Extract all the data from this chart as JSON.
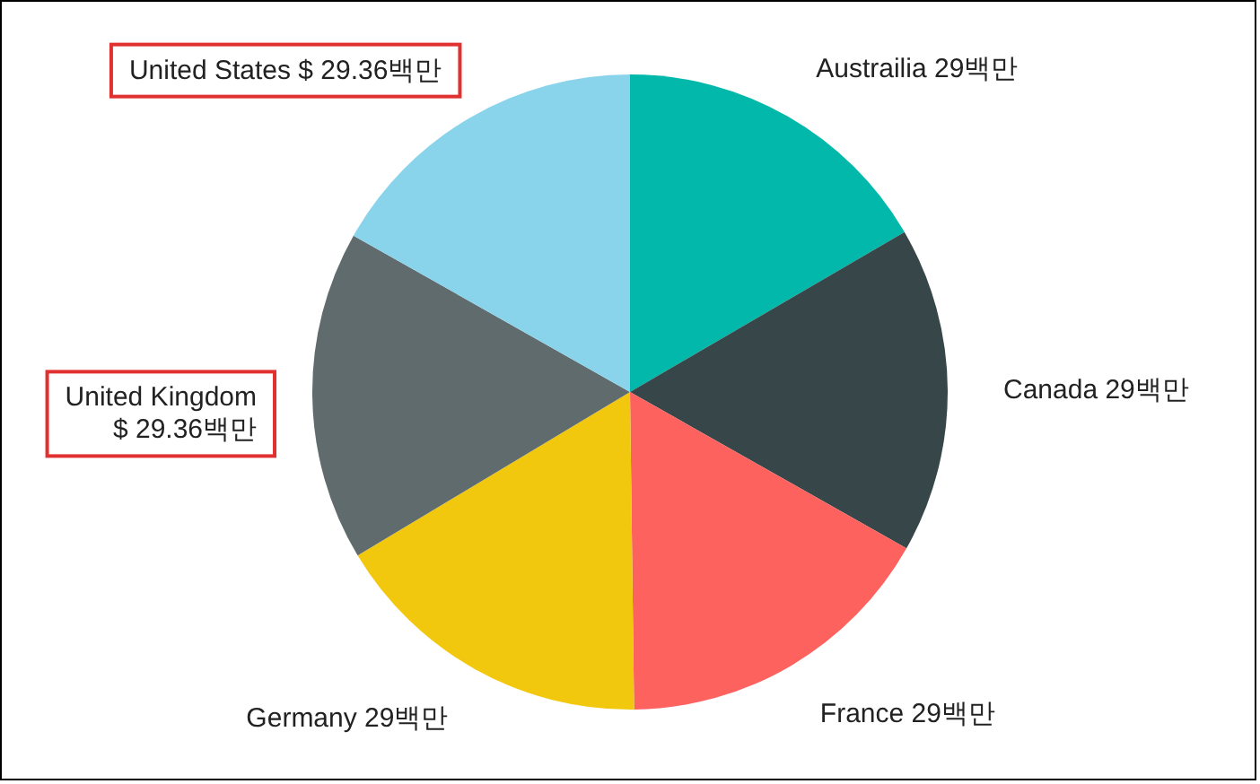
{
  "chart_data": {
    "type": "pie",
    "categories": [
      "Austrailia",
      "Canada",
      "France",
      "Germany",
      "United Kingdom",
      "United States"
    ],
    "values": [
      29,
      29,
      29,
      29,
      29.36,
      29.36
    ],
    "colors": [
      "#01b8aa",
      "#374649",
      "#fd625e",
      "#f2c80f",
      "#5f6b6d",
      "#8ad4eb"
    ],
    "value_labels": [
      "29백만",
      "29백만",
      "29백만",
      "29백만",
      "$ 29.36백만",
      "$ 29.36백만"
    ]
  }
}
